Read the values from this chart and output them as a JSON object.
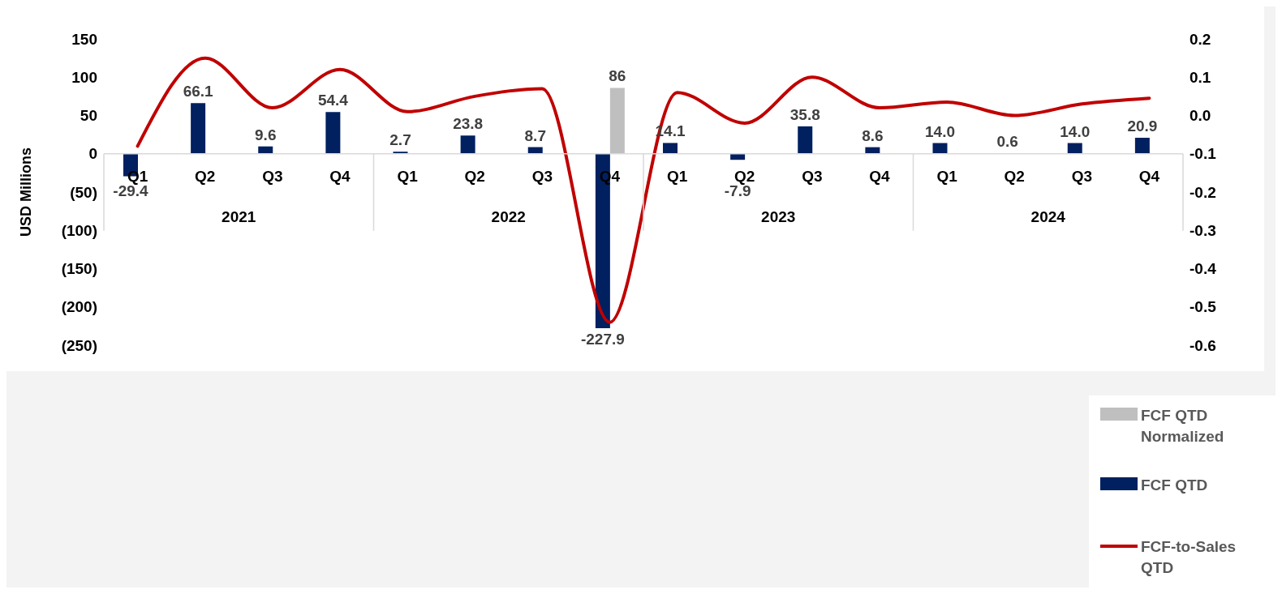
{
  "chart_data": {
    "type": "bar",
    "ylabel": "USD Millions",
    "categories": [
      "Q1",
      "Q2",
      "Q3",
      "Q4",
      "Q1",
      "Q2",
      "Q3",
      "Q4",
      "Q1",
      "Q2",
      "Q3",
      "Q4",
      "Q1",
      "Q2",
      "Q3",
      "Q4"
    ],
    "annotations": [
      "2021",
      "2022",
      "2023",
      "2024"
    ],
    "series": [
      {
        "name": "FCF QTD Normalized",
        "color": "#bfbfbf",
        "values": [
          null,
          null,
          null,
          null,
          null,
          null,
          null,
          86,
          null,
          null,
          null,
          null,
          null,
          null,
          null,
          null
        ],
        "value_labels": [
          null,
          null,
          null,
          null,
          null,
          null,
          null,
          "86",
          null,
          null,
          null,
          null,
          null,
          null,
          null,
          null
        ]
      },
      {
        "name": "FCF QTD",
        "color": "#002060",
        "values": [
          -29.4,
          66.1,
          9.6,
          54.4,
          2.7,
          23.8,
          8.7,
          -227.9,
          14.1,
          -7.9,
          35.8,
          8.6,
          14.0,
          0.6,
          14.0,
          20.9
        ],
        "value_labels": [
          "-29.4",
          "66.1",
          "9.6",
          "54.4",
          "2.7",
          "23.8",
          "8.7",
          "-227.9",
          "14.1",
          "-7.9",
          "35.8",
          "8.6",
          "14.0",
          "0.6",
          "14.0",
          "20.9"
        ]
      },
      {
        "name": "FCF-to-Sales QTD",
        "type": "line",
        "axis": "y2",
        "color": "#c00000",
        "values": [
          -0.08,
          0.15,
          0.02,
          0.12,
          0.01,
          0.05,
          0.07,
          -0.54,
          0.06,
          -0.02,
          0.1,
          0.02,
          0.035,
          0.0,
          0.03,
          0.045
        ]
      }
    ],
    "ylim": [
      -250,
      150
    ],
    "yticks": [
      {
        "value": -250,
        "label": "(250)"
      },
      {
        "value": -200,
        "label": "(200)"
      },
      {
        "value": -150,
        "label": "(150)"
      },
      {
        "value": -100,
        "label": "(100)"
      },
      {
        "value": -50,
        "label": "(50)"
      },
      0,
      50,
      100,
      150
    ],
    "y2lim": [
      -0.6,
      0.2
    ],
    "y2ticks": [
      -0.6,
      -0.5,
      -0.4,
      -0.3,
      -0.2,
      -0.1,
      {
        "value": 0,
        "label": "0.0"
      },
      0.1,
      0.2
    ],
    "grid": false,
    "legend": "bottom right",
    "line_style": "solid",
    "marker": "none"
  }
}
